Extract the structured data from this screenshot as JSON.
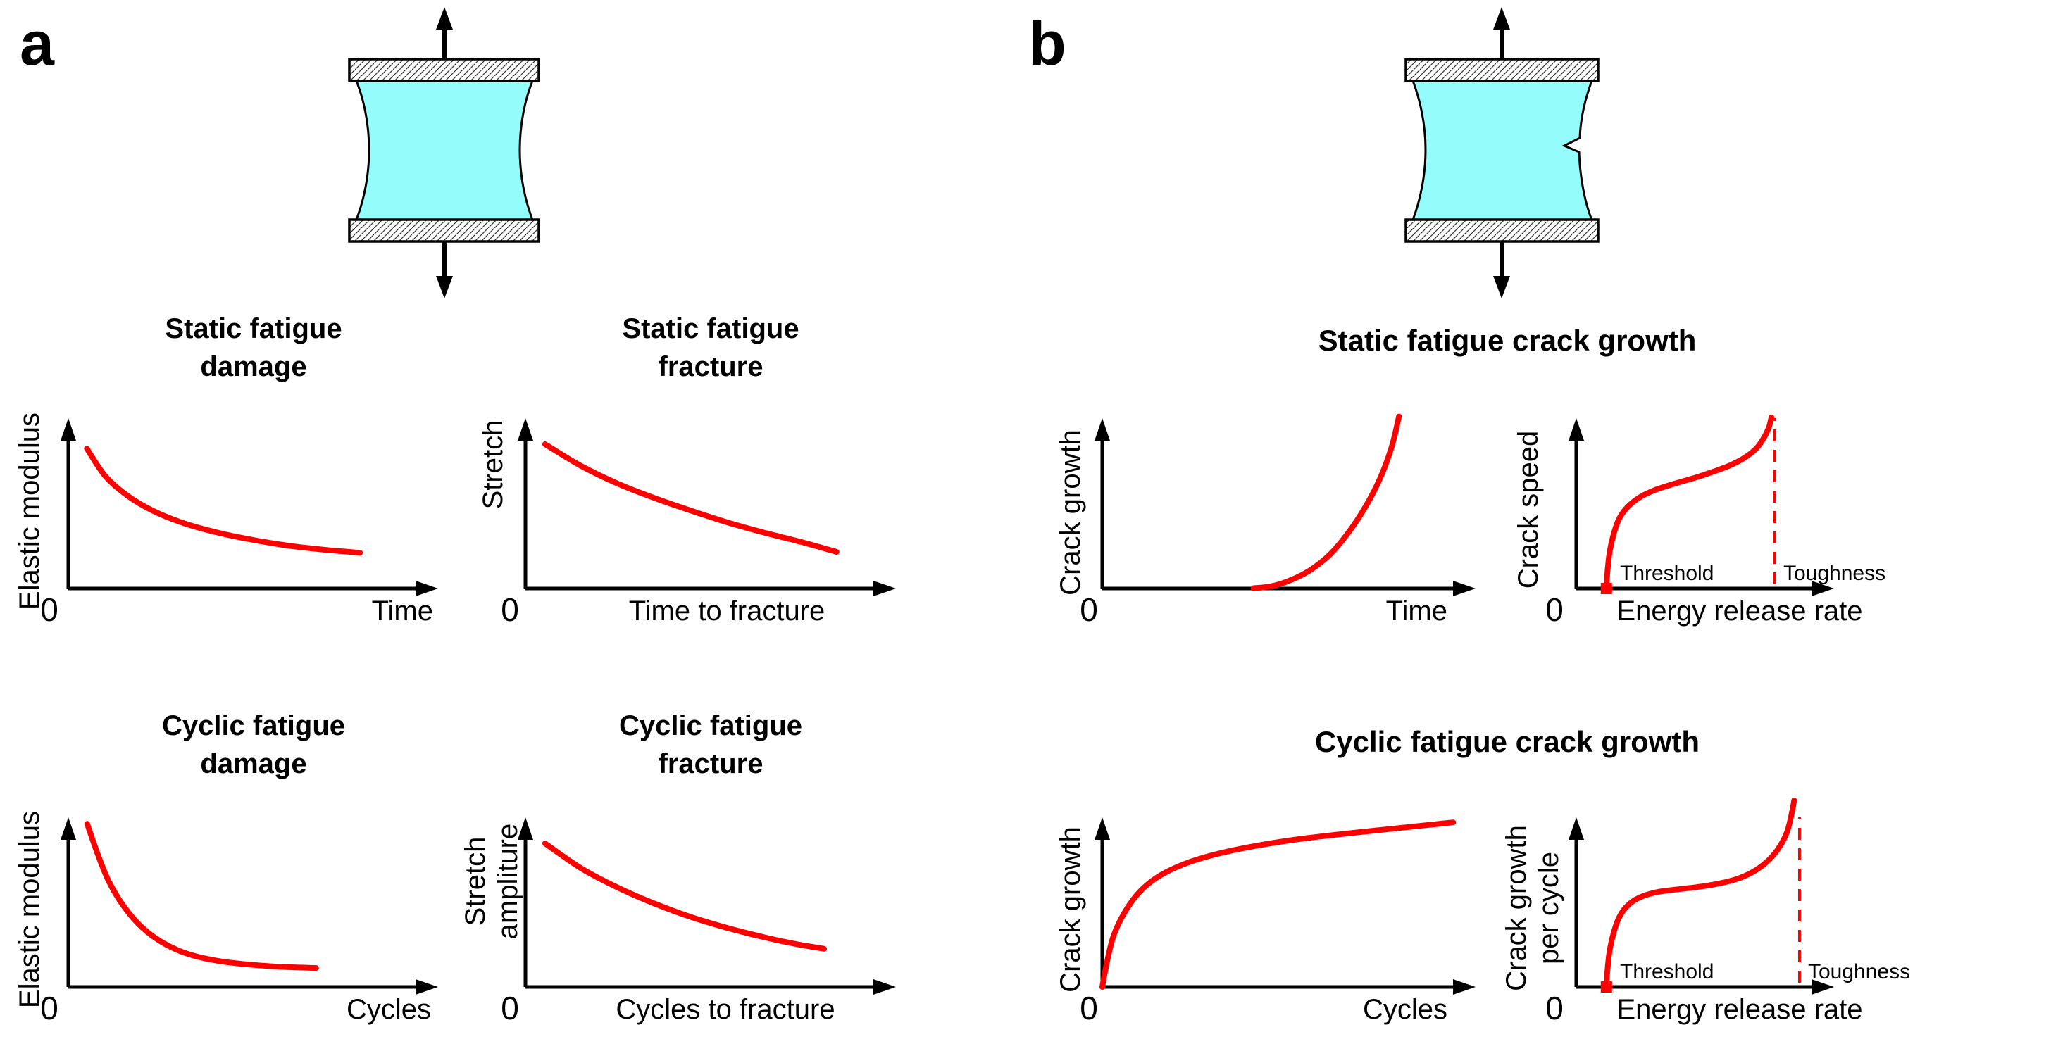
{
  "panels": [
    {
      "label": "a"
    },
    {
      "label": "b"
    }
  ],
  "group_titles": [
    {
      "text": "Static fatigue crack growth"
    },
    {
      "text": "Cyclic fatigue crack growth"
    }
  ],
  "colors": {
    "curve": "#FF0000",
    "specimen_fill": "#95FCFC",
    "ink": "#000000"
  },
  "chart_data": [
    {
      "id": "static-fatigue-damage",
      "type": "line",
      "schematic": true,
      "title": "Static fatigue damage",
      "title_lines": [
        "Static fatigue",
        "damage"
      ],
      "ylabel_lines": [
        "Elastic modulus"
      ],
      "xlabel": "Time",
      "origin_label": "0",
      "x_range": [
        0,
        1
      ],
      "y_range": [
        0,
        1
      ],
      "points": [
        [
          0.05,
          0.822
        ],
        [
          0.1,
          0.66
        ],
        [
          0.16,
          0.545
        ],
        [
          0.23,
          0.455
        ],
        [
          0.31,
          0.385
        ],
        [
          0.4,
          0.33
        ],
        [
          0.5,
          0.285
        ],
        [
          0.6,
          0.25
        ],
        [
          0.7,
          0.226
        ],
        [
          0.789,
          0.21
        ]
      ]
    },
    {
      "id": "static-fatigue-fracture",
      "type": "line",
      "schematic": true,
      "title": "Static fatigue fracture",
      "title_lines": [
        "Static fatigue",
        "fracture"
      ],
      "ylabel_lines": [
        "Stretch"
      ],
      "xlabel": "Time to fracture",
      "origin_label": "0",
      "x_range": [
        0,
        1
      ],
      "y_range": [
        0,
        1
      ],
      "points": [
        [
          0.053,
          0.847
        ],
        [
          0.15,
          0.72
        ],
        [
          0.25,
          0.615
        ],
        [
          0.35,
          0.53
        ],
        [
          0.45,
          0.455
        ],
        [
          0.55,
          0.385
        ],
        [
          0.65,
          0.325
        ],
        [
          0.75,
          0.27
        ],
        [
          0.84,
          0.215
        ]
      ]
    },
    {
      "id": "cyclic-fatigue-damage",
      "type": "line",
      "schematic": true,
      "title": "Cyclic fatigue damage",
      "title_lines": [
        "Cyclic fatigue",
        "damage"
      ],
      "ylabel_lines": [
        "Elastic modulus"
      ],
      "xlabel": "Cycles",
      "origin_label": "0",
      "x_range": [
        0,
        1
      ],
      "y_range": [
        0,
        1
      ],
      "points": [
        [
          0.051,
          0.962
        ],
        [
          0.08,
          0.78
        ],
        [
          0.11,
          0.62
        ],
        [
          0.15,
          0.475
        ],
        [
          0.2,
          0.35
        ],
        [
          0.26,
          0.255
        ],
        [
          0.33,
          0.19
        ],
        [
          0.41,
          0.152
        ],
        [
          0.5,
          0.13
        ],
        [
          0.59,
          0.117
        ],
        [
          0.67,
          0.112
        ]
      ]
    },
    {
      "id": "cyclic-fatigue-fracture",
      "type": "line",
      "schematic": true,
      "title": "Cyclic fatigue fracture",
      "title_lines": [
        "Cyclic fatigue",
        "fracture"
      ],
      "ylabel_lines": [
        "Stretch",
        "ampliture"
      ],
      "xlabel": "Cycles to fracture",
      "origin_label": "0",
      "x_range": [
        0,
        1
      ],
      "y_range": [
        0,
        1
      ],
      "points": [
        [
          0.053,
          0.846
        ],
        [
          0.15,
          0.7
        ],
        [
          0.25,
          0.585
        ],
        [
          0.35,
          0.49
        ],
        [
          0.45,
          0.41
        ],
        [
          0.55,
          0.345
        ],
        [
          0.65,
          0.29
        ],
        [
          0.73,
          0.253
        ],
        [
          0.806,
          0.225
        ]
      ]
    },
    {
      "id": "static-crack-growth-vs-time",
      "type": "line",
      "schematic": true,
      "ylabel_lines": [
        "Crack growth"
      ],
      "xlabel": "Time",
      "origin_label": "0",
      "x_range": [
        0,
        1
      ],
      "y_range": [
        0,
        1
      ],
      "points": [
        [
          0.405,
          0.002
        ],
        [
          0.45,
          0.012
        ],
        [
          0.5,
          0.045
        ],
        [
          0.555,
          0.105
        ],
        [
          0.61,
          0.2
        ],
        [
          0.66,
          0.33
        ],
        [
          0.705,
          0.48
        ],
        [
          0.745,
          0.65
        ],
        [
          0.775,
          0.83
        ],
        [
          0.795,
          1.01
        ]
      ]
    },
    {
      "id": "crack-speed-vs-energy-release-rate",
      "type": "line",
      "schematic": true,
      "ylabel_lines": [
        "Crack speed"
      ],
      "xlabel": "Energy release rate",
      "origin_label": "0",
      "x_range": [
        0,
        1
      ],
      "y_range": [
        0,
        1
      ],
      "threshold": {
        "label": "Threshold",
        "x": 0.117,
        "marker": "red-square"
      },
      "toughness": {
        "label": "Toughness",
        "x": 0.77,
        "marker": "red-dashed-vertical-line"
      },
      "points": [
        [
          0.117,
          0.0
        ],
        [
          0.121,
          0.1
        ],
        [
          0.13,
          0.22
        ],
        [
          0.147,
          0.33
        ],
        [
          0.168,
          0.415
        ],
        [
          0.2,
          0.48
        ],
        [
          0.246,
          0.535
        ],
        [
          0.305,
          0.578
        ],
        [
          0.38,
          0.615
        ],
        [
          0.46,
          0.65
        ],
        [
          0.53,
          0.685
        ],
        [
          0.595,
          0.722
        ],
        [
          0.65,
          0.765
        ],
        [
          0.697,
          0.82
        ],
        [
          0.728,
          0.885
        ],
        [
          0.748,
          0.95
        ],
        [
          0.757,
          1.005
        ]
      ]
    },
    {
      "id": "cyclic-crack-growth-vs-cycles",
      "type": "line",
      "schematic": true,
      "ylabel_lines": [
        "Crack growth"
      ],
      "xlabel": "Cycles",
      "origin_label": "0",
      "x_range": [
        0,
        1
      ],
      "y_range": [
        0,
        1
      ],
      "points": [
        [
          0.0,
          0.0
        ],
        [
          0.012,
          0.14
        ],
        [
          0.03,
          0.3
        ],
        [
          0.06,
          0.44
        ],
        [
          0.1,
          0.56
        ],
        [
          0.15,
          0.65
        ],
        [
          0.22,
          0.725
        ],
        [
          0.31,
          0.785
        ],
        [
          0.42,
          0.835
        ],
        [
          0.55,
          0.878
        ],
        [
          0.7,
          0.915
        ],
        [
          0.83,
          0.945
        ],
        [
          0.94,
          0.97
        ]
      ]
    },
    {
      "id": "crack-growth-per-cycle-vs-energy-release-rate",
      "type": "line",
      "schematic": true,
      "ylabel_lines": [
        "Crack growth",
        "per cycle"
      ],
      "xlabel": "Energy release rate",
      "origin_label": "0",
      "x_range": [
        0,
        1
      ],
      "y_range": [
        0,
        1
      ],
      "threshold": {
        "label": "Threshold",
        "x": 0.117,
        "marker": "red-square"
      },
      "toughness": {
        "label": "Toughness",
        "x": 0.866,
        "marker": "red-dashed-vertical-line"
      },
      "points": [
        [
          0.117,
          0.0
        ],
        [
          0.121,
          0.1
        ],
        [
          0.13,
          0.22
        ],
        [
          0.147,
          0.33
        ],
        [
          0.168,
          0.415
        ],
        [
          0.198,
          0.478
        ],
        [
          0.245,
          0.527
        ],
        [
          0.31,
          0.558
        ],
        [
          0.385,
          0.574
        ],
        [
          0.465,
          0.588
        ],
        [
          0.545,
          0.607
        ],
        [
          0.62,
          0.635
        ],
        [
          0.685,
          0.678
        ],
        [
          0.74,
          0.738
        ],
        [
          0.785,
          0.818
        ],
        [
          0.818,
          0.915
        ],
        [
          0.838,
          1.04
        ],
        [
          0.845,
          1.1
        ]
      ]
    }
  ]
}
